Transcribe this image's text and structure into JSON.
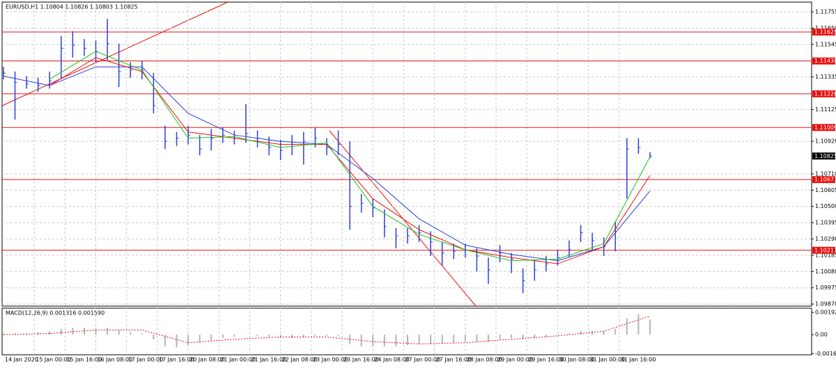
{
  "chart_data": [
    {
      "type": "ohlc",
      "title": "EURUSD,H1  1.10804 1.10826 1.10803 1.10825",
      "color": "#2a3fd6",
      "x": [
        0,
        6,
        12,
        18,
        24,
        30,
        36,
        42,
        48,
        54,
        60,
        66,
        72,
        78,
        84,
        90,
        96,
        102,
        108,
        114,
        120,
        126,
        132,
        138,
        144,
        150,
        156,
        162,
        168,
        174,
        180,
        186,
        192,
        198,
        204,
        210,
        216,
        222,
        228,
        234,
        240,
        246,
        252,
        258,
        264,
        270,
        276,
        282,
        288,
        294,
        300,
        306,
        312,
        318,
        324,
        330,
        336
      ],
      "high": [
        1.114,
        1.1137,
        1.1134,
        1.1133,
        1.1137,
        1.116,
        1.1163,
        1.1158,
        1.1157,
        1.1171,
        1.1155,
        1.1143,
        1.1144,
        1.1136,
        1.1102,
        1.1098,
        1.1102,
        1.1096,
        1.11,
        1.1101,
        1.1099,
        1.1116,
        1.1099,
        1.1095,
        1.1093,
        1.1096,
        1.1098,
        1.1101,
        1.1094,
        1.1099,
        1.1092,
        1.1058,
        1.1055,
        1.1048,
        1.1036,
        1.1036,
        1.1038,
        1.1034,
        1.1027,
        1.1026,
        1.1026,
        1.1023,
        1.1017,
        1.1025,
        1.102,
        1.101,
        1.1015,
        1.1018,
        1.1022,
        1.1028,
        1.1038,
        1.1033,
        1.103,
        1.104,
        1.1094,
        1.1094,
        1.1085
      ],
      "low": [
        1.1132,
        1.1106,
        1.1126,
        1.1124,
        1.1126,
        1.1132,
        1.1146,
        1.1147,
        1.1143,
        1.1144,
        1.1127,
        1.1133,
        1.1132,
        1.111,
        1.1087,
        1.1089,
        1.109,
        1.1083,
        1.1086,
        1.1091,
        1.109,
        1.1091,
        1.1088,
        1.1083,
        1.108,
        1.1083,
        1.1077,
        1.1088,
        1.1083,
        1.1083,
        1.1035,
        1.1046,
        1.1043,
        1.103,
        1.1023,
        1.1026,
        1.1027,
        1.1018,
        1.1012,
        1.1016,
        1.1017,
        1.1008,
        1.1,
        1.1014,
        1.1007,
        1.0994,
        1.1002,
        1.1008,
        1.1012,
        1.1017,
        1.1027,
        1.1022,
        1.1018,
        1.1021,
        1.1055,
        1.1084,
        1.1081
      ],
      "close": [
        1.1136,
        1.113,
        1.1129,
        1.1128,
        1.1131,
        1.1152,
        1.1154,
        1.1152,
        1.115,
        1.1155,
        1.1137,
        1.1138,
        1.1138,
        1.1115,
        1.1092,
        1.1094,
        1.1096,
        1.1087,
        1.1094,
        1.1096,
        1.1094,
        1.1097,
        1.1094,
        1.1088,
        1.1086,
        1.109,
        1.1092,
        1.1094,
        1.1088,
        1.109,
        1.105,
        1.1052,
        1.1049,
        1.1037,
        1.1031,
        1.1031,
        1.1033,
        1.1027,
        1.102,
        1.1021,
        1.1022,
        1.1018,
        1.1009,
        1.102,
        1.1016,
        1.1002,
        1.1009,
        1.1013,
        1.1017,
        1.1022,
        1.1033,
        1.1028,
        1.1024,
        1.1036,
        1.1087,
        1.1088,
        1.10825
      ],
      "series": [
        {
          "color": "#2a3fd6",
          "x": [
            0,
            24,
            48,
            72,
            96,
            120,
            144,
            168,
            192,
            216,
            240,
            264,
            288,
            312,
            336
          ],
          "values": [
            1.1134,
            1.1128,
            1.114,
            1.114,
            1.111,
            1.1096,
            1.1092,
            1.109,
            1.1068,
            1.1042,
            1.1025,
            1.1019,
            1.1015,
            1.1024,
            1.106
          ]
        },
        {
          "color": "#e81010",
          "x": [
            0,
            24,
            48,
            72,
            96,
            120,
            144,
            168,
            192,
            216,
            240,
            264,
            288,
            312,
            336
          ],
          "values": [
            null,
            1.1128,
            1.1146,
            1.1137,
            1.1098,
            1.1094,
            1.109,
            1.109,
            1.1055,
            1.1035,
            1.1022,
            1.1017,
            1.1013,
            1.1024,
            1.107
          ]
        },
        {
          "color": "#19c419",
          "x": [
            0,
            24,
            48,
            72,
            96,
            120,
            144,
            168,
            192,
            216,
            240,
            264,
            288,
            312,
            336
          ],
          "values": [
            null,
            1.1132,
            1.115,
            1.1138,
            1.1094,
            1.1095,
            1.1088,
            1.1091,
            1.105,
            1.1032,
            1.1022,
            1.1015,
            1.1016,
            1.1026,
            1.1082
          ]
        }
      ],
      "levels": [
        1.11625,
        1.11438,
        1.11226,
        1.11009,
        1.10673,
        1.10217
      ],
      "levels_color": "#e81010",
      "current_price": 1.10825,
      "xlim": [
        -0.7,
        420
      ],
      "ylim": [
        1.09857,
        1.11818
      ],
      "yticks": [
        1.11755,
        {
          "value": 1.1165,
          "label": "1.11650"
        },
        1.11545,
        1.11335,
        1.11125,
        {
          "value": 1.1092,
          "label": "1.10920"
        },
        {
          "value": 1.1071,
          "label": "1.10710"
        },
        1.10605,
        {
          "value": 1.105,
          "label": "1.10500"
        },
        1.10395,
        {
          "value": 1.1029,
          "label": "1.10290"
        },
        1.10185,
        {
          "value": 1.1008,
          "label": "1.10080"
        },
        1.09975,
        {
          "value": 1.0987,
          "label": "1.09870"
        }
      ],
      "xticks": [
        {
          "value": 0,
          "label": "14 Jan 2020"
        },
        {
          "value": 16,
          "label": "15 Jan 00:00"
        },
        {
          "value": 32,
          "label": "15 Jan 16:00"
        },
        {
          "value": 48,
          "label": "16 Jan 08:00"
        },
        {
          "value": 64,
          "label": "17 Jan 00:00"
        },
        {
          "value": 80,
          "label": "17 Jan 16:00"
        },
        {
          "value": 96,
          "label": "20 Jan 08:00"
        },
        {
          "value": 112,
          "label": "21 Jan 00:00"
        },
        {
          "value": 128,
          "label": "21 Jan 16:00"
        },
        {
          "value": 144,
          "label": "22 Jan 08:00"
        },
        {
          "value": 160,
          "label": "23 Jan 00:00"
        },
        {
          "value": 176,
          "label": "23 Jan 16:00"
        },
        {
          "value": 192,
          "label": "24 Jan 08:00"
        },
        {
          "value": 208,
          "label": "27 Jan 00:00"
        },
        {
          "value": 224,
          "label": "27 Jan 16:00"
        },
        {
          "value": 240,
          "label": "28 Jan 08:00"
        },
        {
          "value": 256,
          "label": "29 Jan 00:00"
        },
        {
          "value": 272,
          "label": "29 Jan 16:00"
        },
        {
          "value": 288,
          "label": "30 Jan 08:00"
        },
        {
          "value": 304,
          "label": "31 Jan 00:00"
        },
        {
          "value": 320,
          "label": "31 Jan 16:00"
        }
      ],
      "grid": true
    },
    {
      "type": "macd",
      "title": "MACD(12,26,9) 0.001316 0.001590",
      "color": "#b4b4b4",
      "x": [
        0,
        6,
        12,
        18,
        24,
        30,
        36,
        42,
        48,
        54,
        60,
        66,
        72,
        78,
        84,
        90,
        96,
        102,
        108,
        114,
        120,
        126,
        132,
        138,
        144,
        150,
        156,
        162,
        168,
        174,
        180,
        186,
        192,
        198,
        204,
        210,
        216,
        222,
        228,
        234,
        240,
        246,
        252,
        258,
        264,
        270,
        276,
        282,
        288,
        294,
        300,
        306,
        312,
        318,
        324,
        330,
        336
      ],
      "values": [
        0.0001,
        0.0001,
        0.0001,
        0.0002,
        0.0003,
        0.0005,
        0.0006,
        0.0006,
        0.0005,
        0.0006,
        0.0004,
        0.0002,
        0.0001,
        -0.0004,
        -0.001,
        -0.0011,
        -0.0009,
        -0.0007,
        -0.0005,
        -0.0003,
        -0.0002,
        0,
        -0.0001,
        -0.0002,
        -0.0003,
        -0.0003,
        -0.0002,
        -0.0001,
        -0.0001,
        -0.0001,
        -0.0008,
        -0.001,
        -0.001,
        -0.001,
        -0.001,
        -0.0009,
        -0.0008,
        -0.0008,
        -0.0008,
        -0.0007,
        -0.0006,
        -0.0006,
        -0.0006,
        -0.0004,
        -0.0003,
        -0.0004,
        -0.0003,
        -0.0002,
        0,
        0.0001,
        0.0003,
        0.0003,
        0.0003,
        0.0005,
        0.0014,
        0.0018,
        0.0013
      ],
      "signal": {
        "color": "#e81010",
        "x": [
          0,
          24,
          48,
          72,
          96,
          120,
          144,
          168,
          192,
          216,
          240,
          264,
          288,
          312,
          336
        ],
        "values": [
          0,
          0.0001,
          0.0004,
          0.0004,
          -0.0007,
          -0.0004,
          -0.0002,
          -0.0002,
          -0.0006,
          -0.0008,
          -0.0007,
          -0.0004,
          -0.0001,
          0.0003,
          0.0016
        ]
      },
      "xlim": [
        -0.7,
        420
      ],
      "ylim": [
        -0.00174,
        0.00229
      ],
      "yticks": [
        0.001924,
        {
          "value": 0,
          "label": "0.00"
        },
        -0.00164
      ]
    }
  ]
}
